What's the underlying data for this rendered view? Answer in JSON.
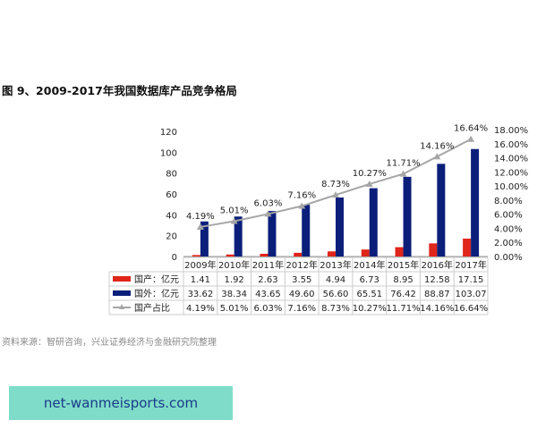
{
  "title": "图 9、2009-2017年我国数据库产品竞争格局",
  "source": "资料来源：智研咨询，兴业证券经济与金融研究院整理",
  "watermark": "net-wanmeisports.com",
  "chart_data": {
    "type": "bar",
    "categories": [
      "2009年",
      "2010年",
      "2011年",
      "2012年",
      "2013年",
      "2014年",
      "2015年",
      "2016年",
      "2017年"
    ],
    "series": [
      {
        "name": "国产：亿元",
        "type": "bar",
        "color": "#e0251b",
        "values": [
          1.41,
          1.92,
          2.63,
          3.55,
          4.94,
          6.73,
          8.95,
          12.58,
          17.15
        ],
        "labels": [
          "1.41",
          "1.92",
          "2.63",
          "3.55",
          "4.94",
          "6.73",
          "8.95",
          "12.58",
          "17.15"
        ]
      },
      {
        "name": "国外：亿元",
        "type": "bar",
        "color": "#0b1f7a",
        "values": [
          33.62,
          38.34,
          43.65,
          49.6,
          56.6,
          65.51,
          76.42,
          88.87,
          103.07
        ],
        "labels": [
          "33.62",
          "38.34",
          "43.65",
          "49.60",
          "56.60",
          "65.51",
          "76.42",
          "88.87",
          "103.07"
        ]
      },
      {
        "name": "国产占比",
        "type": "line",
        "axis": "right",
        "color": "#a6a6a6",
        "values": [
          4.19,
          5.01,
          6.03,
          7.16,
          8.73,
          10.27,
          11.71,
          14.16,
          16.64
        ],
        "labels": [
          "4.19%",
          "5.01%",
          "6.03%",
          "7.16%",
          "8.73%",
          "10.27%",
          "11.71%",
          "14.16%",
          "16.64%"
        ]
      }
    ],
    "y_left": {
      "range": [
        0,
        120
      ],
      "ticks": [
        "0",
        "20",
        "40",
        "60",
        "80",
        "100",
        "120"
      ]
    },
    "y_right": {
      "range": [
        0,
        18
      ],
      "ticks": [
        "0.00%",
        "2.00%",
        "4.00%",
        "6.00%",
        "8.00%",
        "10.00%",
        "12.00%",
        "14.00%",
        "16.00%",
        "18.00%"
      ]
    },
    "legend": "data-table-below"
  }
}
